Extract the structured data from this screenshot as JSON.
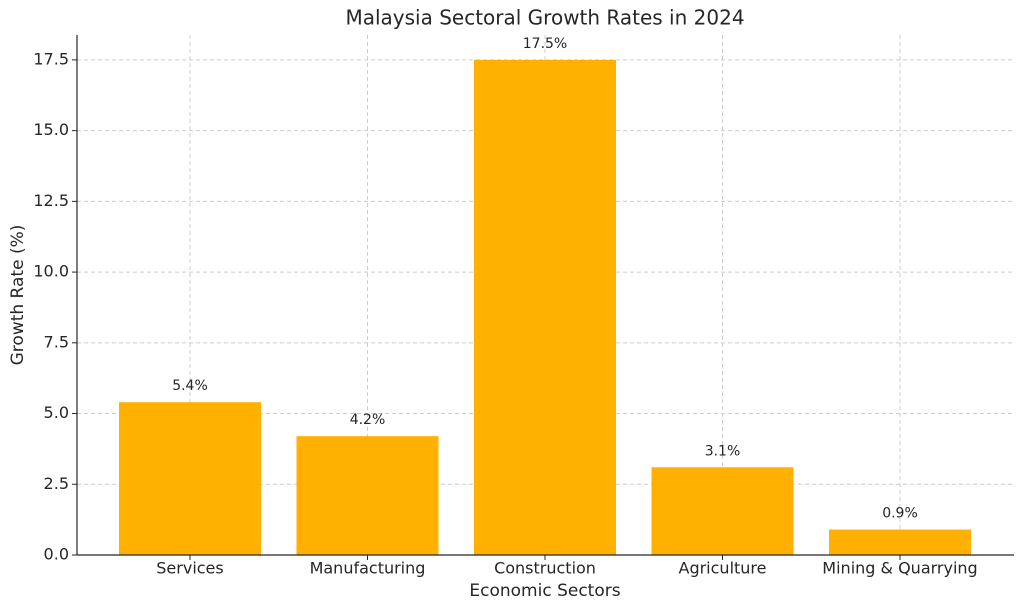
{
  "chart_data": {
    "type": "bar",
    "title": "Malaysia Sectoral Growth Rates in 2024",
    "x_label": "Economic Sectors",
    "y_label": "Growth Rate (%)",
    "categories": [
      "Services",
      "Manufacturing",
      "Construction",
      "Agriculture",
      "Mining & Quarrying"
    ],
    "values": [
      5.4,
      4.2,
      17.5,
      3.1,
      0.9
    ],
    "value_labels": [
      "5.4%",
      "4.2%",
      "17.5%",
      "3.1%",
      "0.9%"
    ],
    "color": "#ffb000",
    "ylim": [
      0,
      18.38
    ],
    "yticks": [
      {
        "value": 0,
        "label": "0.0"
      },
      2.5,
      {
        "value": 5,
        "label": "5.0"
      },
      7.5,
      {
        "value": 10,
        "label": "10.0"
      },
      12.5,
      {
        "value": 15,
        "label": "15.0"
      },
      17.5
    ],
    "grid": true
  }
}
